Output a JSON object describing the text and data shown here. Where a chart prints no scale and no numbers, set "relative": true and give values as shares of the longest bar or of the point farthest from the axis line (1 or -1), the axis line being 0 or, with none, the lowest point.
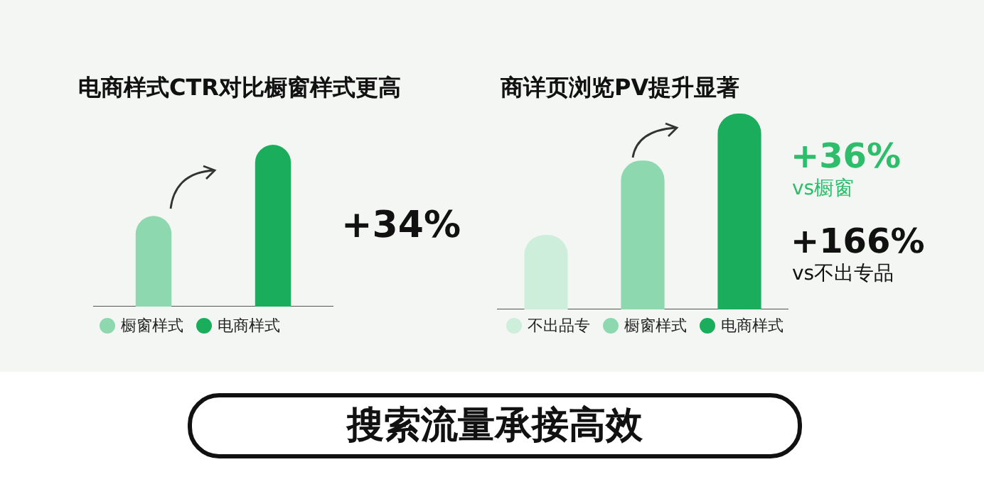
{
  "chart_data": [
    {
      "type": "bar",
      "title": "电商样式CTR对比橱窗样式更高",
      "categories": [
        "橱窗样式",
        "电商样式"
      ],
      "relative": true,
      "tick_labels": false,
      "values": [
        0.56,
        1
      ],
      "colors": [
        "#8ed8b0",
        "#1aae5c"
      ],
      "annotations": [
        "+34%"
      ]
    },
    {
      "type": "bar",
      "title": "商详页浏览PV提升显著",
      "categories": [
        "不出品专",
        "橱窗样式",
        "电商样式"
      ],
      "relative": true,
      "tick_labels": false,
      "values": [
        0.38,
        0.76,
        1
      ],
      "colors": [
        "#cdeedb",
        "#8ed8b0",
        "#1aae5c"
      ],
      "annotations": [
        "+36%",
        "vs橱窗",
        "+166%",
        "vs不出专品"
      ]
    },
    {
      "type": "other",
      "title": "搜索流量承接高效"
    }
  ]
}
